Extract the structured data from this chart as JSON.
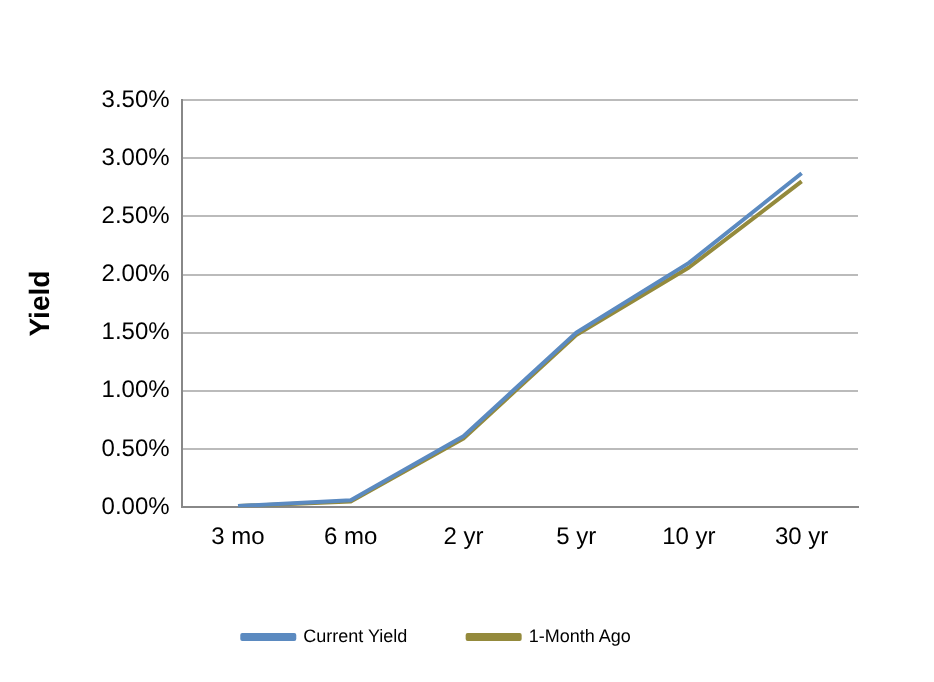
{
  "chart_data": {
    "type": "line",
    "ylabel": "Yield",
    "categories": [
      "3 mo",
      "6 mo",
      "2 yr",
      "5 yr",
      "10 yr",
      "30 yr"
    ],
    "series": [
      {
        "name": "Current Yield",
        "color": "#5b8ac0",
        "values": [
          0.01,
          0.06,
          0.61,
          1.5,
          2.1,
          2.87
        ]
      },
      {
        "name": "1-Month Ago",
        "color": "#948a3c",
        "values": [
          0.01,
          0.05,
          0.59,
          1.48,
          2.06,
          2.8
        ]
      }
    ],
    "ylim": [
      0,
      3.5
    ],
    "yticks": [
      {
        "value": 0,
        "label": "0.00%"
      },
      {
        "value": 0.5,
        "label": "0.50%"
      },
      {
        "value": 1,
        "label": "1.00%"
      },
      {
        "value": 1.5,
        "label": "1.50%"
      },
      {
        "value": 2,
        "label": "2.00%"
      },
      {
        "value": 2.5,
        "label": "2.50%"
      },
      {
        "value": 3,
        "label": "3.00%"
      },
      {
        "value": 3.5,
        "label": "3.50%"
      }
    ],
    "grid": "y",
    "legend": "bottom",
    "marker": "none",
    "line_style": "solid"
  }
}
